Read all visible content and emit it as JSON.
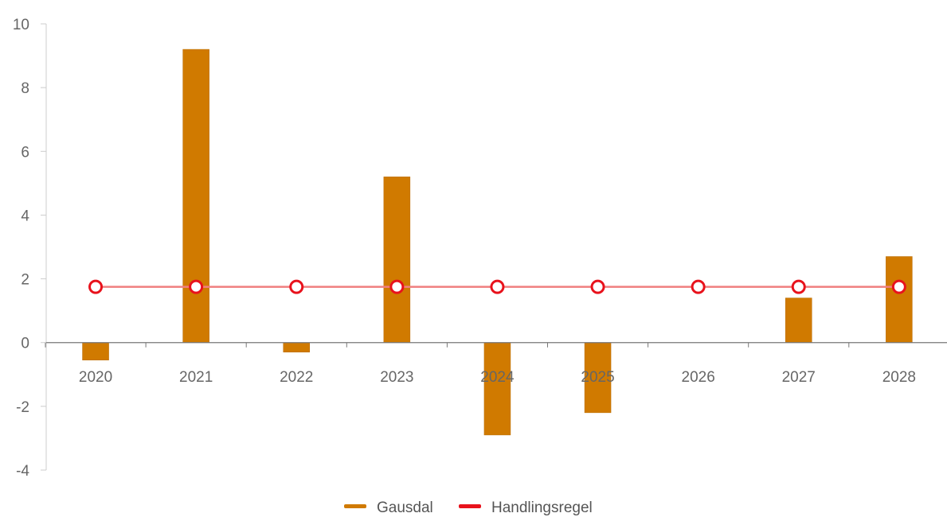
{
  "chart_data": {
    "type": "bar",
    "title": "",
    "xlabel": "",
    "ylabel": "",
    "categories": [
      "2020",
      "2021",
      "2022",
      "2023",
      "2024",
      "2025",
      "2026",
      "2027",
      "2028"
    ],
    "ylim": [
      -4,
      10
    ],
    "yticks": [
      "10",
      "8",
      "6",
      "4",
      "2",
      "0",
      "-2",
      "-4"
    ],
    "grid": false,
    "legend_position": "bottom",
    "series": [
      {
        "name": "Gausdal",
        "type": "bar",
        "color": "#D07A00",
        "values": [
          -0.55,
          9.2,
          -0.3,
          5.2,
          -2.9,
          -2.2,
          0,
          1.4,
          2.7
        ]
      },
      {
        "name": "Handlingsregel",
        "type": "line",
        "color": "#E8121C",
        "values": [
          1.75,
          1.75,
          1.75,
          1.75,
          1.75,
          1.75,
          1.75,
          1.75,
          1.75
        ]
      }
    ]
  }
}
